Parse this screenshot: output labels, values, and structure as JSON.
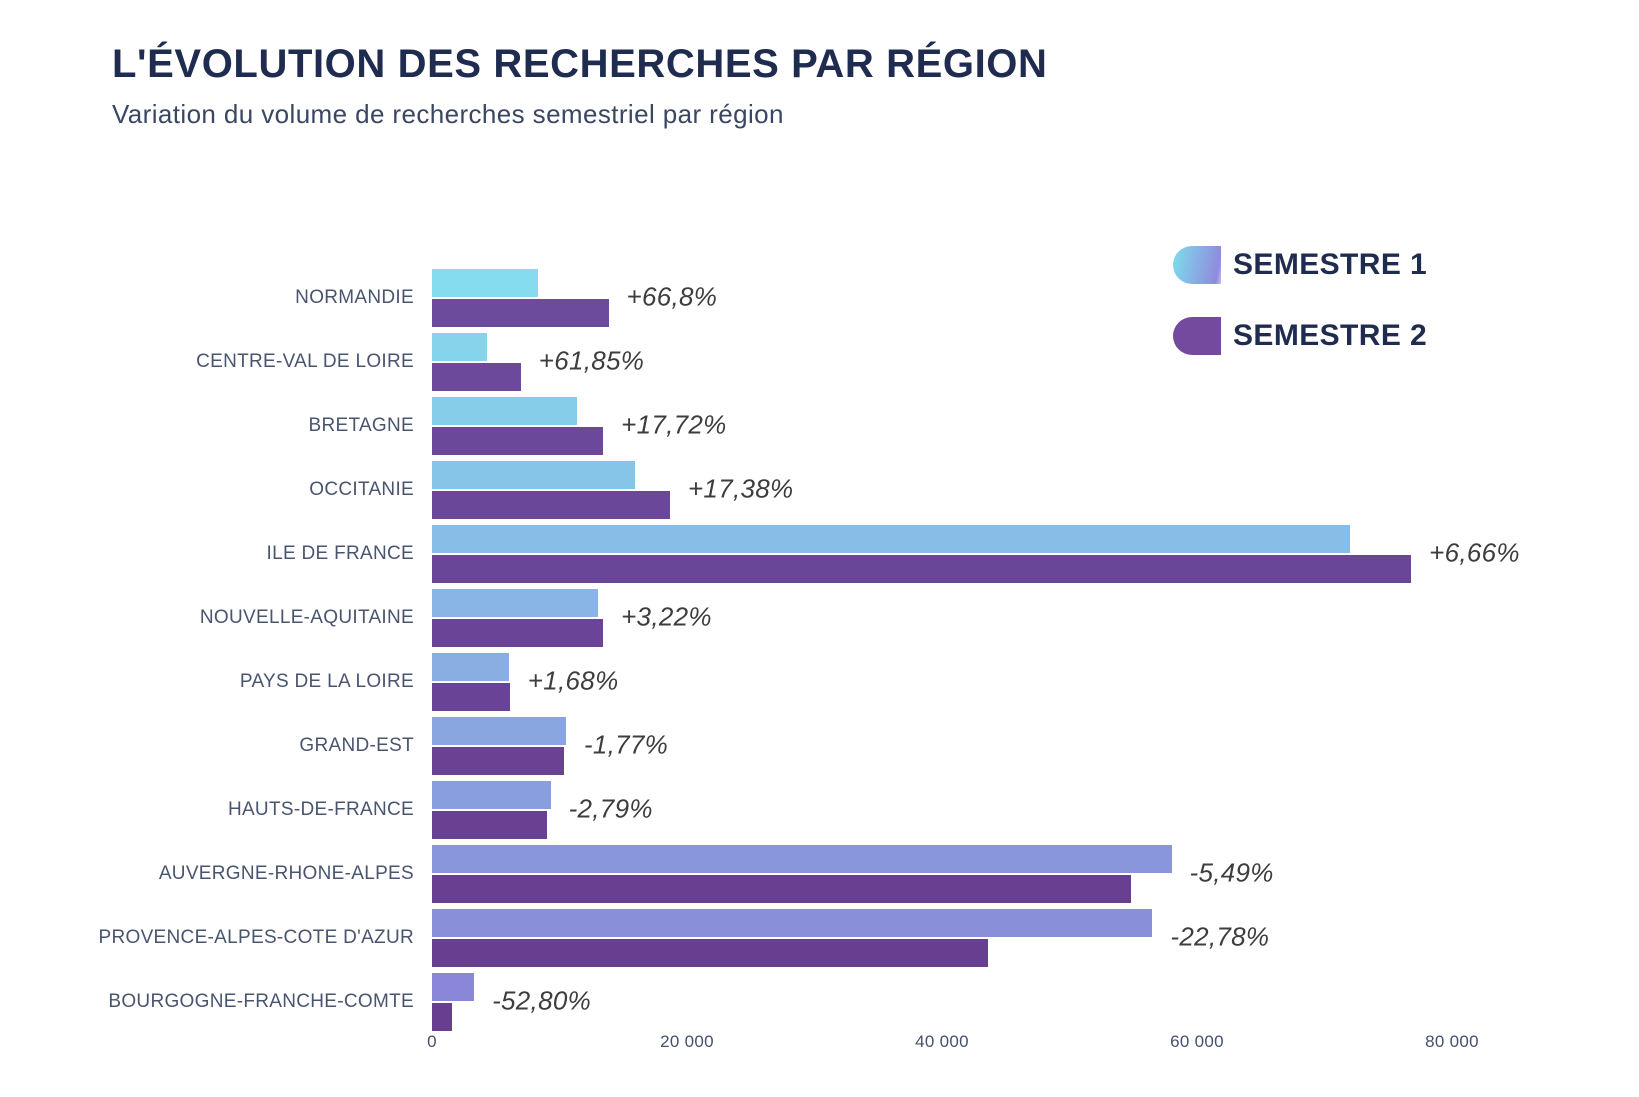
{
  "chart_data": {
    "type": "bar",
    "orientation": "horizontal",
    "title": "L'ÉVOLUTION DES RECHERCHES PAR RÉGION",
    "subtitle": "Variation du volume de recherches semestriel par région",
    "categories": [
      "NORMANDIE",
      "CENTRE-VAL DE LOIRE",
      "BRETAGNE",
      "OCCITANIE",
      "ILE DE FRANCE",
      "NOUVELLE-AQUITAINE",
      "PAYS DE LA LOIRE",
      "GRAND-EST",
      "HAUTS-DE-FRANCE",
      "AUVERGNE-RHONE-ALPES",
      "PROVENCE-ALPES-COTE D'AZUR",
      "BOURGOGNE-FRANCHE-COMTE"
    ],
    "series": [
      {
        "name": "SEMESTRE 1",
        "values": [
          8300,
          4300,
          11400,
          15900,
          72000,
          13000,
          6000,
          10500,
          9300,
          58000,
          56500,
          3300
        ]
      },
      {
        "name": "SEMESTRE 2",
        "values": [
          13844,
          6960,
          13420,
          18663,
          76795,
          13419,
          6101,
          10314,
          9041,
          54816,
          43629,
          1558
        ]
      }
    ],
    "labels": [
      "+66,8%",
      "+61,85%",
      "+17,72%",
      "+17,38%",
      "+6,66%",
      "+3,22%",
      "+1,68%",
      "-1,77%",
      "-2,79%",
      "-5,49%",
      "-22,78%",
      "-52,80%"
    ],
    "xlim": [
      0,
      80000
    ],
    "xticks": [
      0,
      20000,
      40000,
      60000,
      80000
    ],
    "xtick_labels": [
      "0",
      "20 000",
      "40 000",
      "60 000",
      "80 000"
    ],
    "grid": false,
    "legend_position": "top-right",
    "colors": {
      "s1_top": "#85DCEE",
      "s1_bottom": "#8B87D8",
      "s2_top": "#6C4A9C",
      "s2_bottom": "#673E90",
      "title": "#1F2C50",
      "subtitle": "#3A4763",
      "category_label": "#49546E",
      "pct_label": "#3D3D3D",
      "axis_label": "#44506B"
    }
  }
}
